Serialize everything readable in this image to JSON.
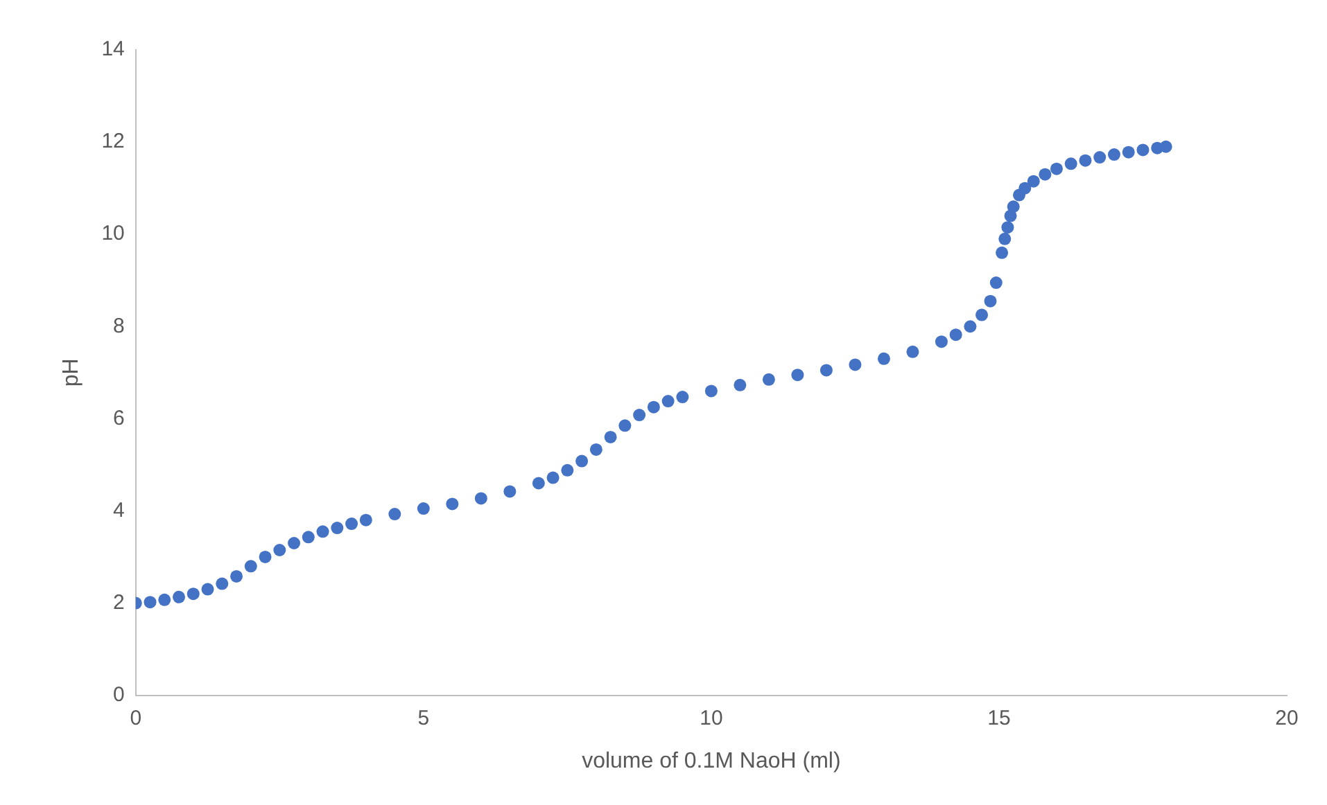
{
  "chart_data": {
    "type": "scatter",
    "xlabel": "volume of 0.1M NaoH (ml)",
    "ylabel": "pH",
    "x": [
      0,
      0.25,
      0.5,
      0.75,
      1,
      1.25,
      1.5,
      1.75,
      2,
      2.25,
      2.5,
      2.75,
      3,
      3.25,
      3.5,
      3.75,
      4,
      4.5,
      5,
      5.5,
      6,
      6.5,
      7,
      7.25,
      7.5,
      7.75,
      8,
      8.25,
      8.5,
      8.75,
      9,
      9.25,
      9.5,
      10,
      10.5,
      11,
      11.5,
      12,
      12.5,
      13,
      13.5,
      14,
      14.25,
      14.5,
      14.7,
      14.85,
      14.95,
      15.05,
      15.1,
      15.15,
      15.2,
      15.25,
      15.35,
      15.45,
      15.6,
      15.8,
      16,
      16.25,
      16.5,
      16.75,
      17,
      17.25,
      17.5,
      17.75,
      17.9
    ],
    "values": [
      2.0,
      2.02,
      2.07,
      2.13,
      2.2,
      2.3,
      2.42,
      2.58,
      2.8,
      3.0,
      3.15,
      3.3,
      3.43,
      3.55,
      3.63,
      3.72,
      3.8,
      3.93,
      4.05,
      4.15,
      4.27,
      4.42,
      4.6,
      4.72,
      4.88,
      5.08,
      5.33,
      5.6,
      5.85,
      6.08,
      6.25,
      6.38,
      6.47,
      6.6,
      6.73,
      6.85,
      6.95,
      7.05,
      7.17,
      7.3,
      7.45,
      7.67,
      7.82,
      8.0,
      8.25,
      8.55,
      8.95,
      9.6,
      9.9,
      10.15,
      10.4,
      10.6,
      10.85,
      11.0,
      11.15,
      11.3,
      11.42,
      11.53,
      11.6,
      11.67,
      11.73,
      11.78,
      11.83,
      11.87,
      11.9
    ],
    "color": "#4472c4",
    "marker": "circle",
    "xlim": [
      0,
      20
    ],
    "xticks": [
      0,
      5,
      10,
      15,
      20
    ],
    "ylim": [
      0,
      14
    ],
    "yticks": [
      0,
      2,
      4,
      6,
      8,
      10,
      12,
      14
    ],
    "grid": false,
    "legend": false
  }
}
